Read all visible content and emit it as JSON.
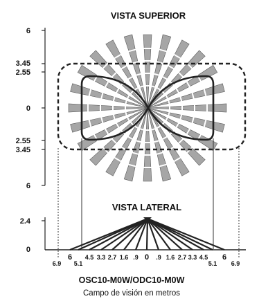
{
  "top_view": {
    "title": "VISTA SUPERIOR",
    "y_labels": [
      "6",
      "3.45",
      "2.55",
      "0",
      "2.55",
      "3.45",
      "6"
    ]
  },
  "side_view": {
    "title": "VISTA LATERAL",
    "y_labels": [
      "2.4",
      "0"
    ],
    "x_labels": [
      "6.9",
      "6",
      "5.1",
      "4.5",
      "3.3",
      "2.7",
      "1.6",
      ".9",
      "0",
      ".9",
      "1.6",
      "2.7",
      "3.3",
      "4.5",
      "5.1",
      "6",
      "6.9"
    ]
  },
  "caption": {
    "model": "OSC10-M0W/ODC10-M0W",
    "subtitle": "Campo de visión en metros"
  },
  "colors": {
    "ray_fill": "#a6a6a6",
    "ray_stroke": "#5a5a5a",
    "line": "#222222"
  }
}
